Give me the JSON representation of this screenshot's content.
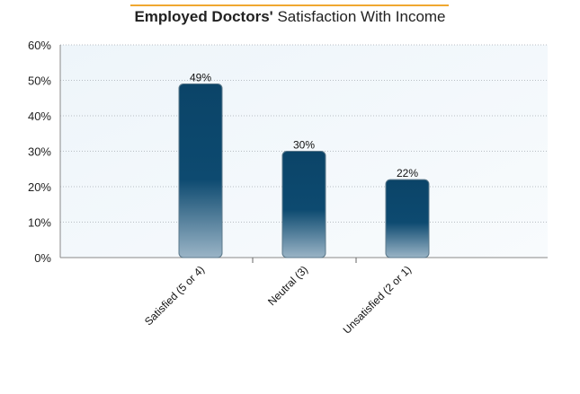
{
  "chart_data": {
    "type": "bar",
    "title_bold": "Employed Doctors'",
    "title_rest": " Satisfaction With Income",
    "categories": [
      "Satisfied (5 or 4)",
      "Neutral (3)",
      "Unsatisfied (2 or 1)"
    ],
    "values": [
      49,
      30,
      22
    ],
    "data_labels": [
      "49%",
      "30%",
      "22%"
    ],
    "ylim": [
      0,
      60
    ],
    "yticks": [
      "0%",
      "10%",
      "20%",
      "30%",
      "40%",
      "50%",
      "60%"
    ],
    "grid": true,
    "colors": {
      "bar_top": "#0b4468",
      "bar_bottom": "#9ab4c6",
      "accent": "#f0a830"
    }
  }
}
